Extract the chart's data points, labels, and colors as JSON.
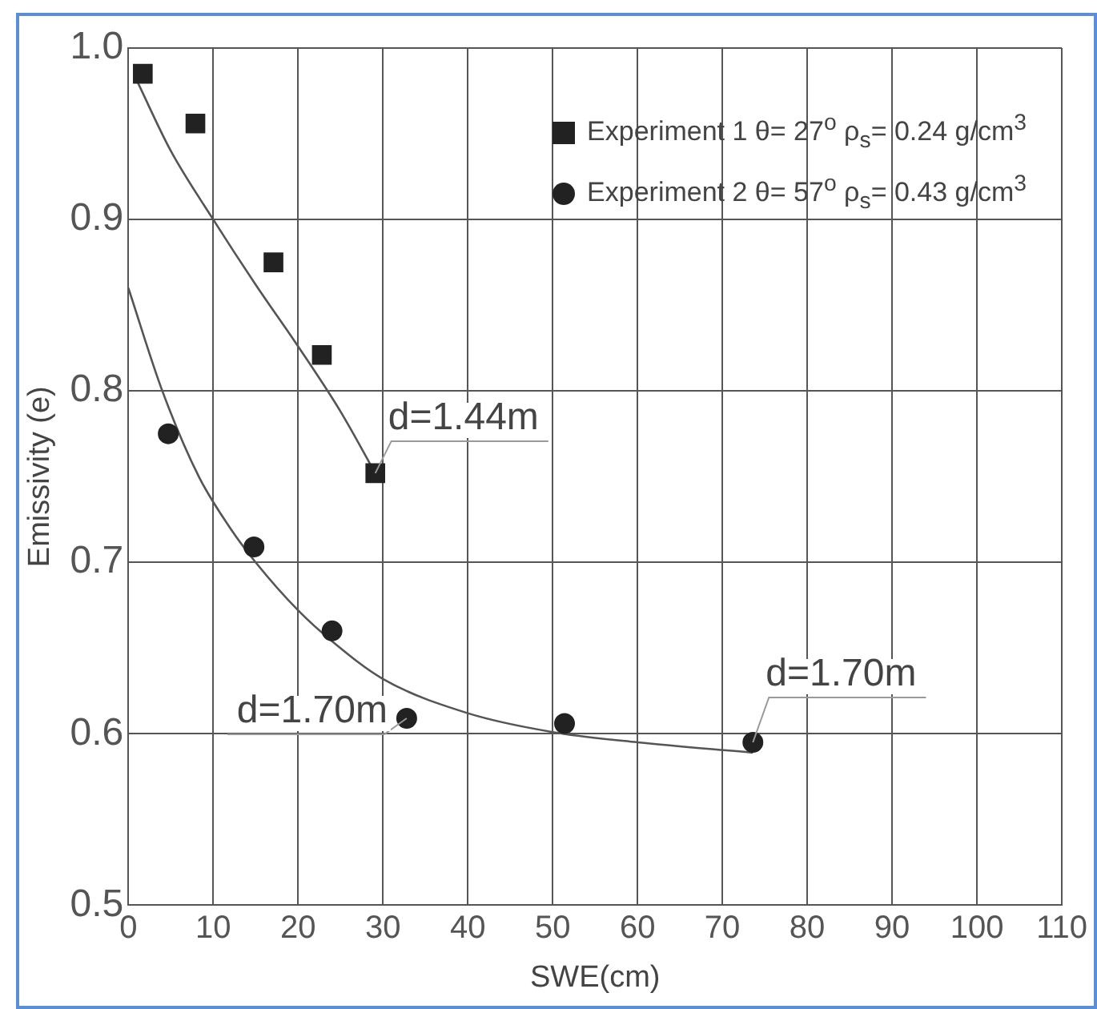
{
  "chart_data": {
    "type": "scatter",
    "xlabel": "SWE(cm)",
    "ylabel": "Emissivity (e)",
    "xlim": [
      0,
      110
    ],
    "xticks": [
      0,
      10,
      20,
      30,
      40,
      50,
      60,
      70,
      80,
      90,
      100,
      110
    ],
    "ylim": [
      0.5,
      1.0
    ],
    "yticks": [
      {
        "value": 0.5,
        "label": "0.5"
      },
      {
        "value": 0.6,
        "label": "0.6"
      },
      {
        "value": 0.7,
        "label": "0.7"
      },
      {
        "value": 0.8,
        "label": "0.8"
      },
      {
        "value": 0.9,
        "label": "0.9"
      },
      {
        "value": 1.0,
        "label": "1.0"
      }
    ],
    "grid": true,
    "legend": "top right",
    "series": [
      {
        "name": "Experiment 1 θ= 27$^{o}$  ρ$_{s}$= 0.24 g/cm$^{3}$",
        "marker": "square",
        "color": "#222222",
        "x": [
          1.7,
          7.9,
          17.1,
          22.8,
          29.1
        ],
        "values": [
          0.985,
          0.956,
          0.875,
          0.821,
          0.752
        ]
      },
      {
        "name": "Experiment 2 θ= 57$^{o}$  ρ$_{s}$= 0.43 g/cm$^{3}$",
        "marker": "circle",
        "color": "#222222",
        "x": [
          4.7,
          14.8,
          24.0,
          32.8,
          51.4,
          73.6
        ],
        "values": [
          0.775,
          0.709,
          0.66,
          0.609,
          0.606,
          0.595
        ]
      },
      {
        "type": "line",
        "marker": "none",
        "color": "#555555",
        "x": [
          1,
          5,
          10,
          15,
          20,
          25,
          29.1
        ],
        "values": [
          0.981,
          0.94,
          0.9,
          0.862,
          0.826,
          0.788,
          0.752
        ]
      },
      {
        "type": "line",
        "marker": "none",
        "color": "#555555",
        "x": [
          0,
          4,
          8.3,
          12,
          15,
          20,
          24,
          30,
          40,
          50,
          60,
          73.6
        ],
        "values": [
          0.86,
          0.8,
          0.75,
          0.72,
          0.7,
          0.672,
          0.654,
          0.632,
          0.612,
          0.601,
          0.595,
          0.589
        ]
      }
    ],
    "annotations": [
      {
        "text": "d=1.44m",
        "x": 29.1,
        "y": 0.752
      },
      {
        "text": "d=1.70m",
        "x": 32.8,
        "y": 0.609
      },
      {
        "text": "d=1.70m",
        "x": 73.6,
        "y": 0.595
      }
    ]
  }
}
